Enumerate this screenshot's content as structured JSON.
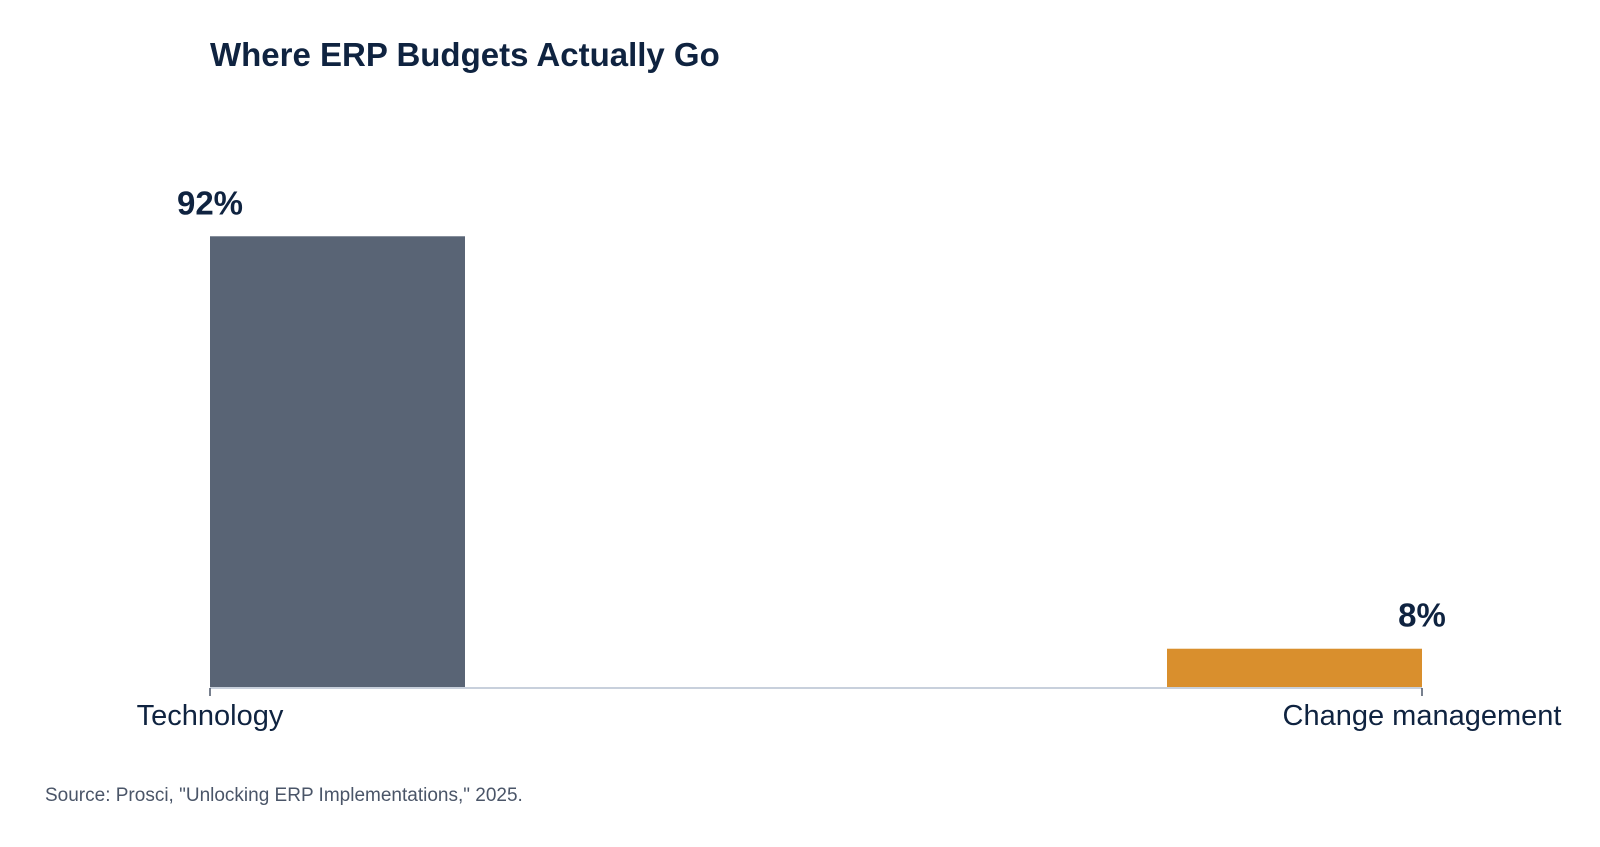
{
  "chart_data": {
    "type": "bar",
    "title": "Where ERP Budgets Actually Go",
    "categories": [
      "Technology",
      "Change management"
    ],
    "values": [
      92,
      8
    ],
    "value_labels": [
      "92%",
      "8%"
    ],
    "unit": "%",
    "ylim": [
      0,
      100
    ],
    "xlabel": "",
    "ylabel": "",
    "grid": false,
    "legend": "none",
    "colors": [
      "#596475",
      "#d98f2d"
    ]
  },
  "source": "Source: Prosci, \"Unlocking ERP Implementations,\" 2025.",
  "colors": {
    "title": "#0f2340",
    "text": "#0f2340",
    "axis": "#c8d0dc",
    "source": "#4a5568"
  }
}
